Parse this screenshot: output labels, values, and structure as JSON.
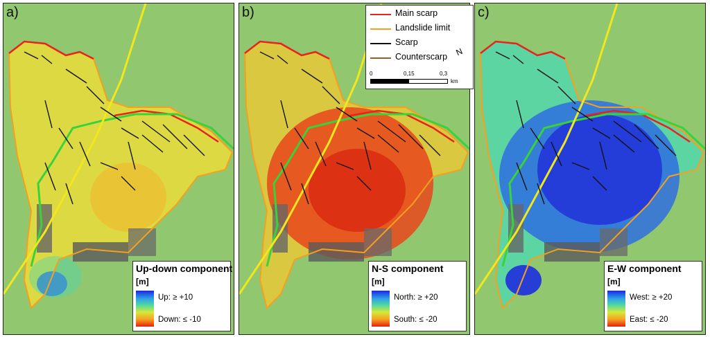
{
  "panels": [
    {
      "label": "a)",
      "legend": {
        "title": "Up-down component",
        "unit": "[m]",
        "high": "Up: ≥ +10",
        "low": "Down: ≤ -10"
      }
    },
    {
      "label": "b)",
      "legend": {
        "title": "N-S component",
        "unit": "[m]",
        "high": "North: ≥ +20",
        "low": "South: ≤ -20"
      }
    },
    {
      "label": "c)",
      "legend": {
        "title": "E-W component",
        "unit": "[m]",
        "high": "West: ≥ +20",
        "low": "East: ≤ -20"
      }
    }
  ],
  "feature_legend": {
    "items": [
      {
        "label": "Main scarp",
        "color": "#e8221c"
      },
      {
        "label": "Landslide limit",
        "color": "#f5a020"
      },
      {
        "label": "Scarp",
        "color": "#111111"
      },
      {
        "label": "Counterscarp",
        "color": "#9a5a2a"
      }
    ],
    "scale": {
      "ticks": [
        "0",
        "0,15",
        "0,3"
      ],
      "unit": "km"
    },
    "north_symbol": "N"
  },
  "colors": {
    "background_green": "#8cc46a",
    "road": "#f2e61c",
    "green_line": "#3ad23a",
    "landslide_limit": "#f5a020",
    "main_scarp": "#e8221c",
    "updown_fill": "#e6da3e",
    "ns_fill": "#e8461c",
    "ew_fill": "#2336d8"
  }
}
